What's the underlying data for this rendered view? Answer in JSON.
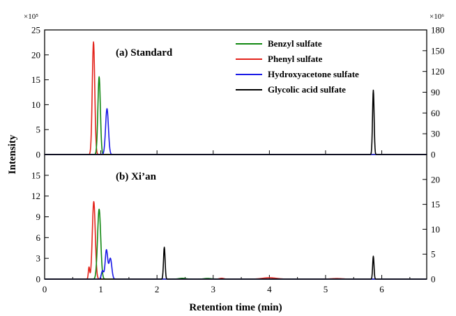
{
  "chart_data": {
    "type": "line",
    "xlabel": "Retention time (min)",
    "ylabel": "Intensity",
    "xlim": [
      0,
      6.8
    ],
    "xticks": [
      "0",
      "1",
      "2",
      "3",
      "4",
      "5",
      "6"
    ],
    "legend": {
      "placement": "top-right",
      "entries": [
        {
          "name": "Benzyl sulfate",
          "color": "#118811"
        },
        {
          "name": "Phenyl sulfate",
          "color": "#e3231b"
        },
        {
          "name": "Hydroxyacetone sulfate",
          "color": "#1a1ae6"
        },
        {
          "name": "Glycolic acid sulfate",
          "color": "#000000"
        }
      ]
    },
    "panels": [
      {
        "label": "(a) Standard",
        "left_axis": {
          "ylim": [
            0,
            25
          ],
          "ticks": [
            "0",
            "5",
            "10",
            "15",
            "20",
            "25"
          ],
          "scale": "×10⁵"
        },
        "right_axis": {
          "ylim": [
            0,
            180
          ],
          "ticks": [
            "0",
            "30",
            "60",
            "90",
            "120",
            "150",
            "180"
          ],
          "scale": "×10⁶"
        },
        "series": [
          {
            "name": "Phenyl sulfate",
            "color": "#e3231b",
            "axis": "left",
            "peaks": [
              {
                "rt": 0.87,
                "height": 22.6,
                "width": 0.022
              }
            ]
          },
          {
            "name": "Benzyl sulfate",
            "color": "#118811",
            "axis": "left",
            "peaks": [
              {
                "rt": 0.97,
                "height": 15.6,
                "width": 0.022
              }
            ]
          },
          {
            "name": "Hydroxyacetone sulfate",
            "color": "#1a1ae6",
            "axis": "left",
            "peaks": [
              {
                "rt": 1.11,
                "height": 9.2,
                "width": 0.025
              }
            ]
          },
          {
            "name": "Glycolic acid sulfate",
            "color": "#000000",
            "axis": "right",
            "peaks": [
              {
                "rt": 5.85,
                "height": 93,
                "width": 0.014
              }
            ]
          }
        ]
      },
      {
        "label": "(b) Xi’an",
        "left_axis": {
          "ylim": [
            0,
            18
          ],
          "ticks": [
            "0",
            "3",
            "6",
            "9",
            "12",
            "15"
          ]
        },
        "right_axis": {
          "ylim": [
            0,
            25
          ],
          "ticks": [
            "0",
            "5",
            "10",
            "15",
            "20"
          ]
        },
        "series": [
          {
            "name": "Phenyl sulfate",
            "color": "#e3231b",
            "axis": "left",
            "peaks": [
              {
                "rt": 0.79,
                "height": 1.7,
                "width": 0.012
              },
              {
                "rt": 0.875,
                "height": 11.2,
                "width": 0.026
              },
              {
                "rt": 3.15,
                "height": 0.12,
                "width": 0.04
              },
              {
                "rt": 4.0,
                "height": 0.2,
                "width": 0.12
              },
              {
                "rt": 5.2,
                "height": 0.08,
                "width": 0.1
              }
            ]
          },
          {
            "name": "Benzyl sulfate",
            "color": "#118811",
            "axis": "left",
            "peaks": [
              {
                "rt": 0.97,
                "height": 10.1,
                "width": 0.028
              },
              {
                "rt": 2.45,
                "height": 0.12,
                "width": 0.06
              },
              {
                "rt": 2.9,
                "height": 0.1,
                "width": 0.06
              }
            ]
          },
          {
            "name": "Hydroxyacetone sulfate",
            "color": "#1a1ae6",
            "axis": "left",
            "peaks": [
              {
                "rt": 1.03,
                "height": 1.2,
                "width": 0.02
              },
              {
                "rt": 1.1,
                "height": 4.2,
                "width": 0.022
              },
              {
                "rt": 1.17,
                "height": 3.0,
                "width": 0.025
              }
            ]
          },
          {
            "name": "Glycolic acid sulfate",
            "color": "#000000",
            "axis": "right",
            "peaks": [
              {
                "rt": 2.13,
                "height": 6.4,
                "width": 0.014
              },
              {
                "rt": 5.85,
                "height": 4.6,
                "width": 0.012
              }
            ]
          }
        ]
      }
    ]
  }
}
